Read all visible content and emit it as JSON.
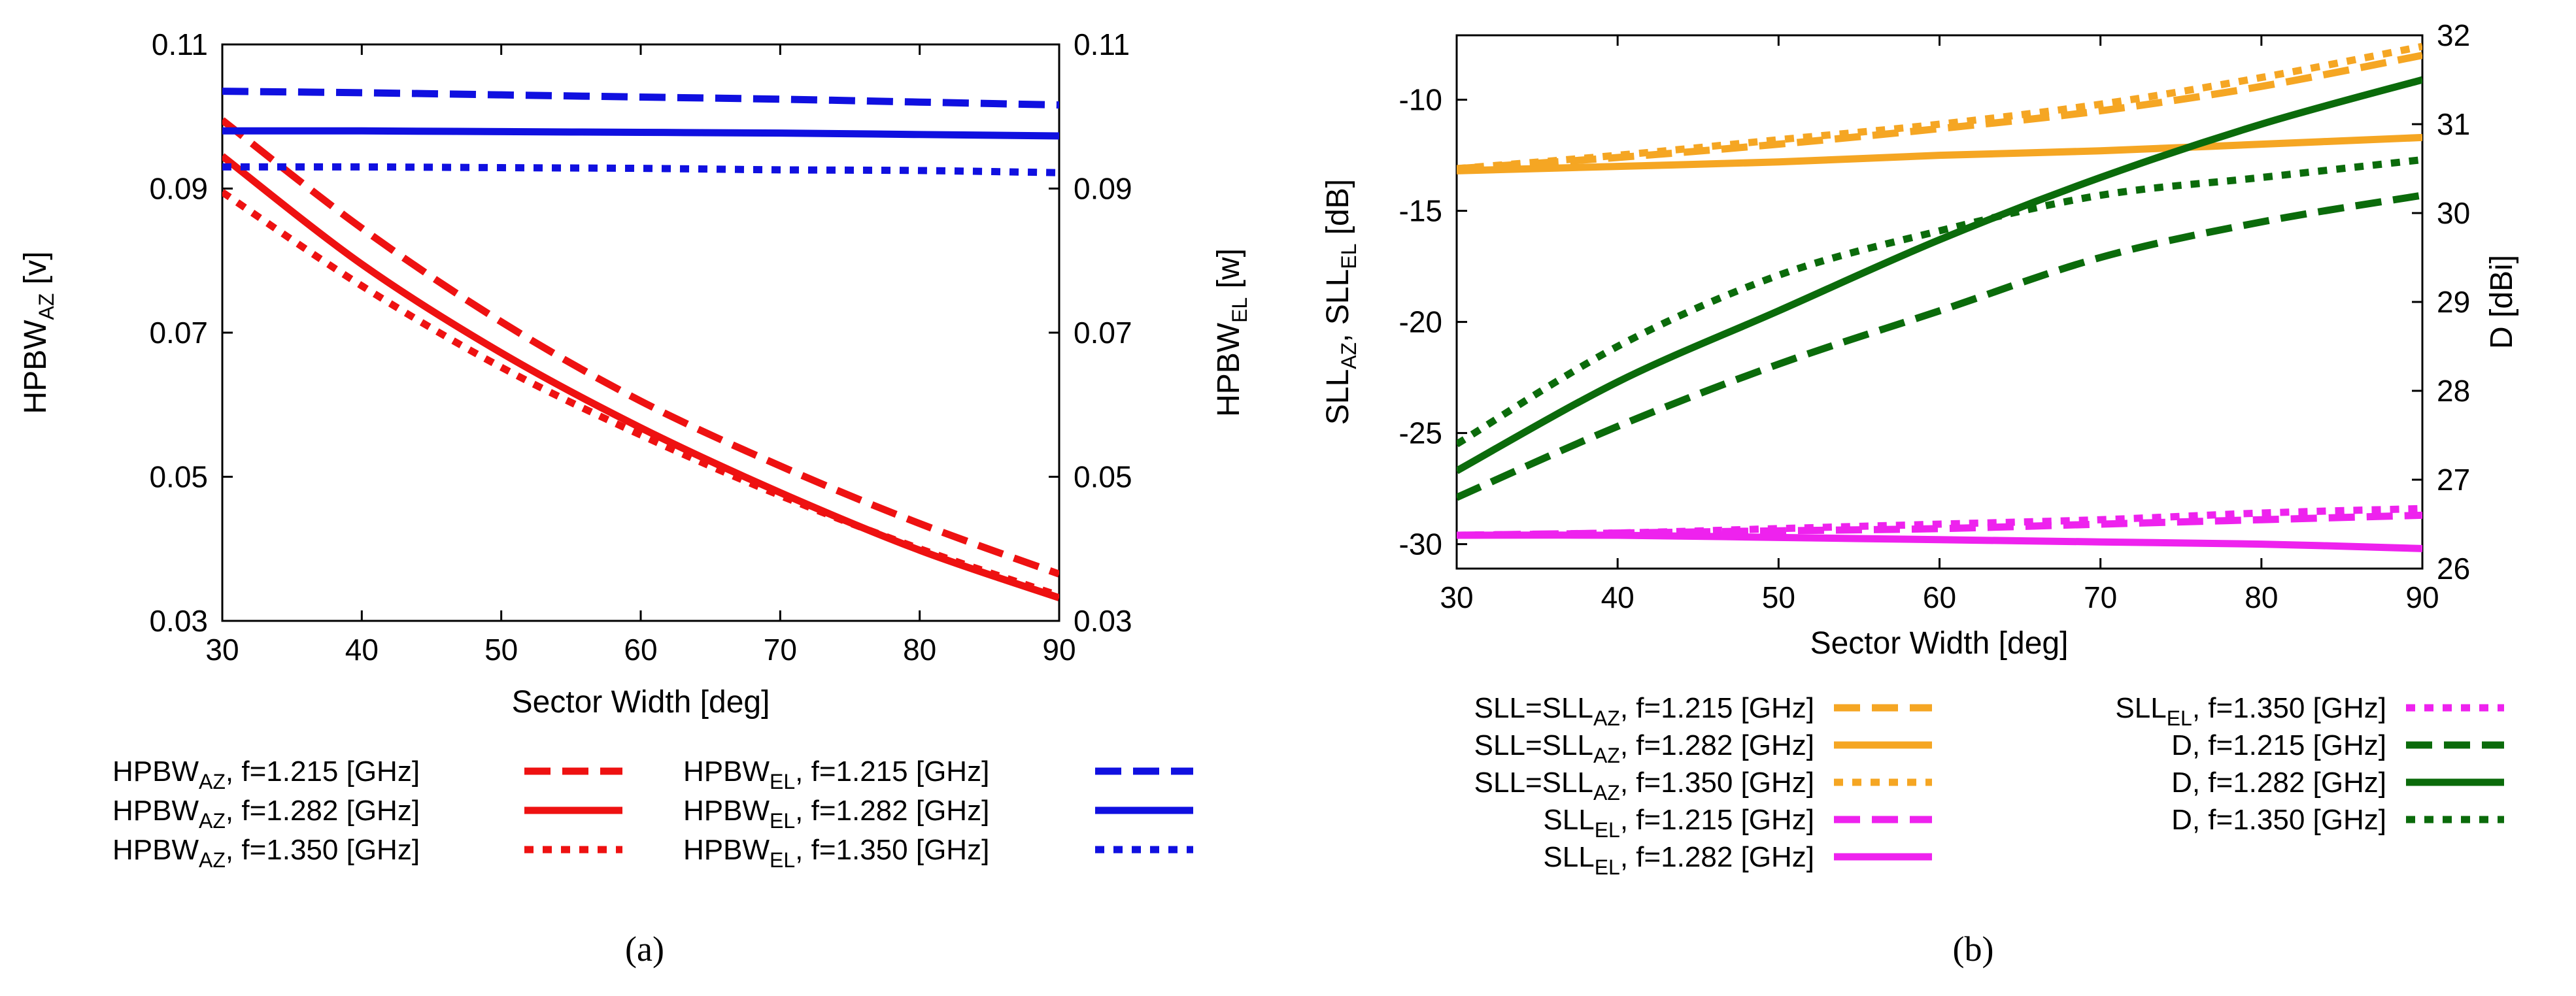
{
  "colors": {
    "red": "#ee1111",
    "blue": "#1010e0",
    "orange": "#f5a623",
    "magenta": "#ee22ee",
    "green": "#0b6b0b"
  },
  "captions": {
    "a": "(a)",
    "b": "(b)"
  },
  "chart_data": [
    {
      "id": "a",
      "type": "line",
      "xlabel": "Sector Width [deg]",
      "ylabel_left": {
        "base": "HPBW",
        "sub": "AZ",
        "unit": " [v]"
      },
      "ylabel_right": {
        "base": "HPBW",
        "sub": "EL",
        "unit": " [w]"
      },
      "xlim": [
        30,
        90
      ],
      "ylim_left": [
        0.03,
        0.11
      ],
      "ylim_right": [
        0.03,
        0.11
      ],
      "x_ticks": [
        "30",
        "40",
        "50",
        "60",
        "70",
        "80",
        "90"
      ],
      "y_ticks_left": [
        "0.03",
        "0.05",
        "0.07",
        "0.09",
        "0.11"
      ],
      "y_ticks_right": [
        "0.03",
        "0.05",
        "0.07",
        "0.09",
        "0.11"
      ],
      "x": [
        30,
        40,
        50,
        60,
        70,
        80,
        90
      ],
      "series": [
        {
          "name": "HPBW_AZ, f=1.215 [GHz]",
          "leg_base": "HPBW",
          "leg_sub": "AZ",
          "leg_rest": ", f=1.215 [GHz]",
          "color": "red",
          "dash": "dashed",
          "axis": "left",
          "values": [
            0.0995,
            0.0845,
            0.0715,
            0.0605,
            0.0515,
            0.0435,
            0.0365
          ]
        },
        {
          "name": "HPBW_AZ, f=1.282 [GHz]",
          "leg_base": "HPBW",
          "leg_sub": "AZ",
          "leg_rest": ", f=1.282 [GHz]",
          "color": "red",
          "dash": "solid",
          "axis": "left",
          "values": [
            0.0945,
            0.0795,
            0.0672,
            0.0568,
            0.0478,
            0.0398,
            0.0332
          ]
        },
        {
          "name": "HPBW_AZ, f=1.350 [GHz]",
          "leg_base": "HPBW",
          "leg_sub": "AZ",
          "leg_rest": ", f=1.350 [GHz]",
          "color": "red",
          "dash": "dotted",
          "axis": "left",
          "values": [
            0.0895,
            0.0765,
            0.0652,
            0.0558,
            0.0474,
            0.04,
            0.0335
          ]
        },
        {
          "name": "HPBW_EL, f=1.215 [GHz]",
          "leg_base": "HPBW",
          "leg_sub": "EL",
          "leg_rest": ", f=1.215 [GHz]",
          "color": "blue",
          "dash": "dashed",
          "axis": "right",
          "values": [
            0.1035,
            0.1033,
            0.103,
            0.1027,
            0.1024,
            0.102,
            0.1016
          ]
        },
        {
          "name": "HPBW_EL, f=1.282 [GHz]",
          "leg_base": "HPBW",
          "leg_sub": "EL",
          "leg_rest": ", f=1.282 [GHz]",
          "color": "blue",
          "dash": "solid",
          "axis": "right",
          "values": [
            0.098,
            0.098,
            0.0979,
            0.0978,
            0.0977,
            0.0975,
            0.0973
          ]
        },
        {
          "name": "HPBW_EL, f=1.350 [GHz]",
          "leg_base": "HPBW",
          "leg_sub": "EL",
          "leg_rest": ", f=1.350 [GHz]",
          "color": "blue",
          "dash": "dotted",
          "axis": "right",
          "values": [
            0.093,
            0.093,
            0.0929,
            0.0928,
            0.0926,
            0.0925,
            0.0922
          ]
        }
      ]
    },
    {
      "id": "b",
      "type": "line",
      "xlabel": "Sector Width [deg]",
      "ylabel_left": {
        "parts": [
          [
            "SLL",
            "AZ"
          ],
          [
            ", SLL",
            "EL"
          ]
        ],
        "unit": " [dB]"
      },
      "ylabel_right": {
        "text": "D  [dBi]"
      },
      "xlim": [
        30,
        90
      ],
      "ylim_left": [
        -31.1,
        -7.1
      ],
      "ylim_right": [
        26,
        32
      ],
      "x_ticks": [
        "30",
        "40",
        "50",
        "60",
        "70",
        "80",
        "90"
      ],
      "y_ticks_left": [
        "-30",
        "-25",
        "-20",
        "-15",
        "-10"
      ],
      "y_ticks_left_values": [
        -30,
        -25,
        -20,
        -15,
        -10
      ],
      "y_ticks_right": [
        "26",
        "27",
        "28",
        "29",
        "30",
        "31",
        "32"
      ],
      "x": [
        30,
        40,
        50,
        60,
        70,
        80,
        90
      ],
      "series": [
        {
          "name": "SLL=SLL_AZ, f=1.215 [GHz]",
          "leg_base": "SLL=SLL",
          "leg_sub": "AZ",
          "leg_rest": ", f=1.215 [GHz]",
          "color": "orange",
          "dash": "dashed",
          "axis": "left",
          "values": [
            -13.1,
            -12.6,
            -12.0,
            -11.3,
            -10.5,
            -9.4,
            -8.0
          ]
        },
        {
          "name": "SLL=SLL_AZ, f=1.282 [GHz]",
          "leg_base": "SLL=SLL",
          "leg_sub": "AZ",
          "leg_rest": ", f=1.282 [GHz]",
          "color": "orange",
          "dash": "solid",
          "axis": "left",
          "values": [
            -13.2,
            -13.0,
            -12.8,
            -12.5,
            -12.3,
            -12.0,
            -11.7
          ]
        },
        {
          "name": "SLL=SLL_AZ, f=1.350 [GHz]",
          "leg_base": "SLL=SLL",
          "leg_sub": "AZ",
          "leg_rest": ", f=1.350 [GHz]",
          "color": "orange",
          "dash": "dotted",
          "axis": "left",
          "values": [
            -13.1,
            -12.5,
            -11.8,
            -11.1,
            -10.2,
            -9.0,
            -7.6
          ]
        },
        {
          "name": "SLL_EL, f=1.215 [GHz]",
          "leg_base": "SLL",
          "leg_sub": "EL",
          "leg_rest": ", f=1.215 [GHz]",
          "color": "magenta",
          "dash": "dashed",
          "axis": "left",
          "values": [
            -29.6,
            -29.5,
            -29.4,
            -29.3,
            -29.1,
            -28.9,
            -28.7
          ]
        },
        {
          "name": "SLL_EL, f=1.282 [GHz]",
          "leg_base": "SLL",
          "leg_sub": "EL",
          "leg_rest": ", f=1.282 [GHz]",
          "color": "magenta",
          "dash": "solid",
          "axis": "left",
          "values": [
            -29.6,
            -29.6,
            -29.7,
            -29.8,
            -29.9,
            -30.0,
            -30.2
          ]
        },
        {
          "name": "SLL_EL, f=1.350 [GHz]",
          "leg_base": "SLL",
          "leg_sub": "EL",
          "leg_rest": ", f=1.350 [GHz]",
          "color": "magenta",
          "dash": "dotted",
          "axis": "left",
          "values": [
            -29.6,
            -29.5,
            -29.3,
            -29.1,
            -28.9,
            -28.6,
            -28.4
          ]
        },
        {
          "name": "D, f=1.215 [GHz]",
          "leg_base": "D, f=1.215 [GHz]",
          "leg_sub": "",
          "leg_rest": "",
          "color": "green",
          "dash": "dashed",
          "axis": "right",
          "values": [
            26.8,
            27.6,
            28.3,
            28.9,
            29.5,
            29.9,
            30.2
          ]
        },
        {
          "name": "D, f=1.282 [GHz]",
          "leg_base": "D, f=1.282 [GHz]",
          "leg_sub": "",
          "leg_rest": "",
          "color": "green",
          "dash": "solid",
          "axis": "right",
          "values": [
            27.1,
            28.1,
            28.9,
            29.7,
            30.4,
            31.0,
            31.5
          ]
        },
        {
          "name": "D, f=1.350 [GHz]",
          "leg_base": "D, f=1.350 [GHz]",
          "leg_sub": "",
          "leg_rest": "",
          "color": "green",
          "dash": "dotted",
          "axis": "right",
          "values": [
            27.4,
            28.5,
            29.3,
            29.8,
            30.2,
            30.4,
            30.6
          ]
        }
      ]
    }
  ]
}
